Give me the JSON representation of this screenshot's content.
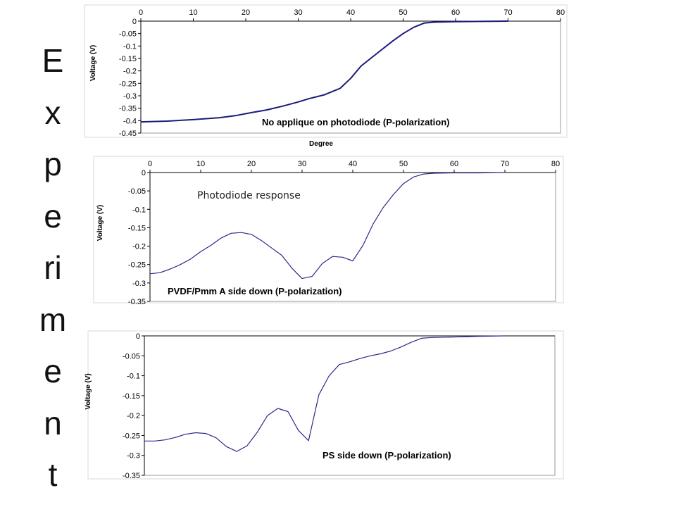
{
  "slide": {
    "vertical_title": "Experiment",
    "vertical_title_lines": [
      "E",
      "x",
      "p",
      "e",
      "ri",
      "m",
      "e",
      "n",
      "t"
    ]
  },
  "chart_data": [
    {
      "type": "line",
      "title": "",
      "xlabel": "Degree",
      "ylabel": "Voltage (V)",
      "xlim": [
        0,
        80
      ],
      "ylim": [
        -0.45,
        0
      ],
      "x_ticks": [
        "0",
        "10",
        "20",
        "30",
        "40",
        "50",
        "60",
        "70",
        "80"
      ],
      "y_ticks": [
        "0",
        "-0.05",
        "-0.1",
        "-0.15",
        "-0.2",
        "-0.25",
        "-0.3",
        "-0.35",
        "-0.4",
        "-0.45"
      ],
      "x_axis_position": "top",
      "annotation": "No applique on photodiode (P-polarization)",
      "line_color": "#1b1b7a",
      "grid": false,
      "series": [
        {
          "x": [
            0,
            5,
            10,
            15,
            18,
            21,
            24,
            27,
            30,
            32,
            35,
            38,
            40,
            42,
            45,
            48,
            50,
            52,
            54,
            56,
            60,
            65,
            70
          ],
          "y": [
            -0.405,
            -0.402,
            -0.396,
            -0.388,
            -0.38,
            -0.368,
            -0.357,
            -0.342,
            -0.325,
            -0.312,
            -0.296,
            -0.27,
            -0.23,
            -0.18,
            -0.13,
            -0.08,
            -0.05,
            -0.025,
            -0.008,
            -0.004,
            -0.002,
            -0.001,
            0
          ]
        }
      ]
    },
    {
      "type": "line",
      "title": "",
      "xlabel": "",
      "ylabel": "Voltage (V)",
      "xlim": [
        0,
        80
      ],
      "ylim": [
        -0.35,
        0
      ],
      "x_ticks": [
        "0",
        "10",
        "20",
        "30",
        "40",
        "50",
        "60",
        "70",
        "80"
      ],
      "y_ticks": [
        "0",
        "-0.05",
        "-0.1",
        "-0.15",
        "-0.2",
        "-0.25",
        "-0.3",
        "-0.35"
      ],
      "x_axis_position": "top",
      "annotation": "PVDF/Pmm A side down   (P-polarization)",
      "note": "Photodiode response",
      "line_color": "#2a2a8a",
      "grid": false,
      "series": [
        {
          "x": [
            0,
            2,
            4,
            6,
            8,
            10,
            12,
            14,
            16,
            18,
            20,
            22,
            24,
            26,
            28,
            30,
            32,
            34,
            36,
            38,
            40,
            42,
            44,
            46,
            48,
            50,
            52,
            54,
            56,
            60,
            65,
            70
          ],
          "y": [
            -0.275,
            -0.272,
            -0.262,
            -0.25,
            -0.235,
            -0.215,
            -0.198,
            -0.178,
            -0.165,
            -0.163,
            -0.168,
            -0.185,
            -0.205,
            -0.225,
            -0.26,
            -0.288,
            -0.282,
            -0.247,
            -0.228,
            -0.23,
            -0.24,
            -0.198,
            -0.14,
            -0.095,
            -0.06,
            -0.03,
            -0.012,
            -0.004,
            -0.002,
            -0.001,
            -0.001,
            0
          ]
        }
      ]
    },
    {
      "type": "line",
      "title": "",
      "xlabel": "",
      "ylabel": "Voltage (V)",
      "xlim": [
        0,
        80
      ],
      "ylim": [
        -0.35,
        0
      ],
      "x_ticks": [],
      "y_ticks": [
        "0",
        "-0.05",
        "-0.1",
        "-0.15",
        "-0.2",
        "-0.25",
        "-0.3",
        "-0.35"
      ],
      "annotation": "PS side down (P-polarization)",
      "line_color": "#2a2a8a",
      "grid": false,
      "series": [
        {
          "x": [
            0,
            2,
            4,
            6,
            8,
            10,
            12,
            14,
            16,
            18,
            20,
            22,
            24,
            26,
            28,
            30,
            32,
            34,
            36,
            38,
            40,
            42,
            44,
            46,
            48,
            50,
            52,
            54,
            56,
            60,
            65,
            70
          ],
          "y": [
            -0.264,
            -0.264,
            -0.261,
            -0.255,
            -0.247,
            -0.243,
            -0.245,
            -0.256,
            -0.278,
            -0.29,
            -0.276,
            -0.242,
            -0.2,
            -0.182,
            -0.19,
            -0.237,
            -0.263,
            -0.148,
            -0.1,
            -0.072,
            -0.065,
            -0.057,
            -0.05,
            -0.045,
            -0.038,
            -0.028,
            -0.016,
            -0.006,
            -0.004,
            -0.003,
            -0.001,
            0
          ]
        }
      ]
    }
  ]
}
